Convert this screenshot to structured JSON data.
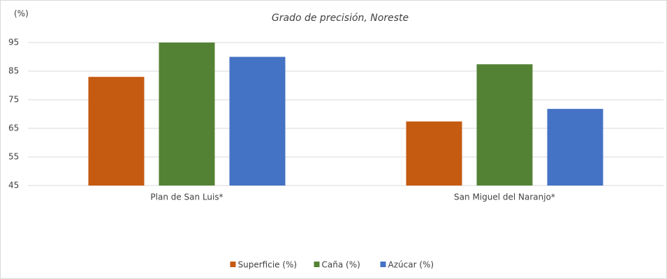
{
  "chart_data": {
    "type": "bar",
    "title": "Grado de precisión, Noreste",
    "y_label": "(%)",
    "categories": [
      "Plan de San Luis*",
      "San Miguel del Naranjo*"
    ],
    "series": [
      {
        "name": "Superficie (%)",
        "color": "#c55a11",
        "values": [
          83,
          67.4
        ]
      },
      {
        "name": "Caña (%)",
        "color": "#548235",
        "values": [
          95,
          87.4
        ]
      },
      {
        "name": "Azúcar (%)",
        "color": "#4472c4",
        "values": [
          90,
          71.8
        ]
      }
    ],
    "ylim": [
      45,
      95
    ],
    "yticks": [
      45,
      55,
      65,
      75,
      85,
      95
    ],
    "grid": true,
    "legend": "bottom"
  }
}
